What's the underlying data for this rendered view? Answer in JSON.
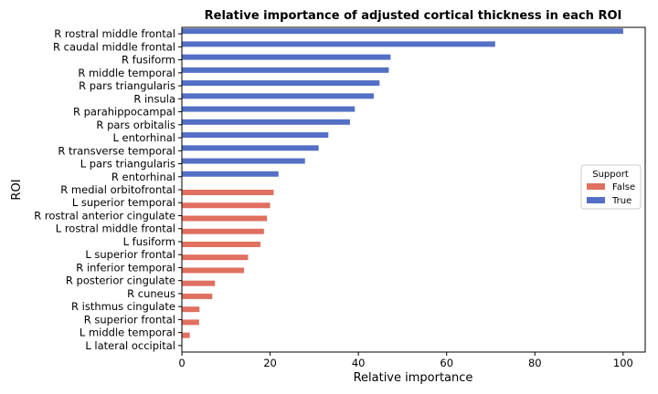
{
  "chart_data": {
    "type": "bar",
    "orientation": "horizontal",
    "title": "Relative importance of adjusted cortical thickness in each ROI",
    "xlabel": "Relative importance",
    "ylabel": "ROI",
    "xlim": [
      0,
      105
    ],
    "xticks": [
      0,
      20,
      40,
      60,
      80,
      100
    ],
    "grid": false,
    "legend": {
      "title": "Support",
      "placement": "right",
      "entries": [
        {
          "label": "False",
          "color": "#e07060"
        },
        {
          "label": "True",
          "color": "#5470c6"
        }
      ]
    },
    "bars": [
      {
        "label": "R rostral middle frontal",
        "value": 100,
        "support": "True"
      },
      {
        "label": "R caudal middle frontal",
        "value": 71,
        "support": "True"
      },
      {
        "label": "R fusiform",
        "value": 47.3,
        "support": "True"
      },
      {
        "label": "R middle temporal",
        "value": 46.9,
        "support": "True"
      },
      {
        "label": "R pars triangularis",
        "value": 44.8,
        "support": "True"
      },
      {
        "label": "R insula",
        "value": 43.5,
        "support": "True"
      },
      {
        "label": "R parahippocampal",
        "value": 39.2,
        "support": "True"
      },
      {
        "label": "R pars orbitalis",
        "value": 38.1,
        "support": "True"
      },
      {
        "label": "L entorhinal",
        "value": 33.2,
        "support": "True"
      },
      {
        "label": "R transverse temporal",
        "value": 31,
        "support": "True"
      },
      {
        "label": "L pars triangularis",
        "value": 27.9,
        "support": "True"
      },
      {
        "label": "R entorhinal",
        "value": 21.9,
        "support": "True"
      },
      {
        "label": "R medial orbitofrontal",
        "value": 20.8,
        "support": "False"
      },
      {
        "label": "L superior temporal",
        "value": 20,
        "support": "False"
      },
      {
        "label": "R rostral anterior cingulate",
        "value": 19.3,
        "support": "False"
      },
      {
        "label": "L rostral middle frontal",
        "value": 18.6,
        "support": "False"
      },
      {
        "label": "L fusiform",
        "value": 17.8,
        "support": "False"
      },
      {
        "label": "L superior frontal",
        "value": 15,
        "support": "False"
      },
      {
        "label": "R inferior temporal",
        "value": 14.1,
        "support": "False"
      },
      {
        "label": "R posterior cingulate",
        "value": 7.5,
        "support": "False"
      },
      {
        "label": "R cuneus",
        "value": 6.9,
        "support": "False"
      },
      {
        "label": "R isthmus cingulate",
        "value": 4,
        "support": "False"
      },
      {
        "label": "R superior frontal",
        "value": 3.9,
        "support": "False"
      },
      {
        "label": "L middle temporal",
        "value": 1.8,
        "support": "False"
      },
      {
        "label": "L lateral occipital",
        "value": 0,
        "support": "False"
      }
    ]
  }
}
